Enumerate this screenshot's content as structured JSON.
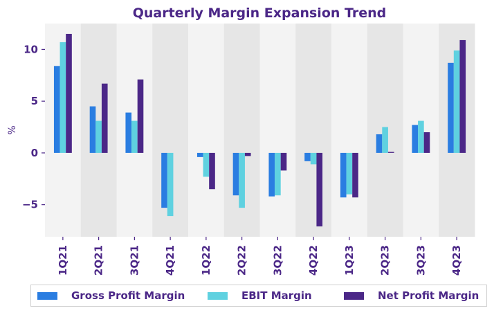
{
  "chart_data": {
    "type": "bar",
    "title": "Quarterly Margin Expansion Trend",
    "xlabel": "",
    "ylabel": "%",
    "ylim": [
      -8.1,
      12.5
    ],
    "yticks": [
      -5,
      0,
      5,
      10
    ],
    "ytick_labels": [
      "−5",
      "0",
      "5",
      "10"
    ],
    "grid": false,
    "alternating_bands": true,
    "legend_position": "bottom",
    "categories": [
      "1Q21",
      "2Q21",
      "3Q21",
      "4Q21",
      "1Q22",
      "2Q22",
      "3Q22",
      "4Q22",
      "1Q23",
      "2Q23",
      "3Q23",
      "4Q23"
    ],
    "series": [
      {
        "name": "Gross Profit Margin",
        "color": "#2a7de1",
        "values": [
          8.4,
          4.5,
          3.9,
          -5.3,
          -0.4,
          -4.1,
          -4.2,
          -0.8,
          -4.3,
          1.8,
          2.7,
          8.7
        ]
      },
      {
        "name": "EBIT Margin",
        "color": "#5fd1e0",
        "values": [
          10.7,
          3.1,
          3.1,
          -6.1,
          -2.3,
          -5.3,
          -4.1,
          -1.1,
          -4.0,
          2.5,
          3.1,
          9.9
        ]
      },
      {
        "name": "Net Profit Margin",
        "color": "#4b2787",
        "values": [
          11.5,
          6.7,
          7.1,
          0.0,
          -3.5,
          -0.3,
          -1.7,
          -7.1,
          -4.3,
          0.1,
          2.0,
          10.9
        ]
      }
    ]
  },
  "colors": {
    "text": "#4b2787",
    "band_light": "#f3f3f3",
    "band_dark": "#e6e6e6"
  }
}
